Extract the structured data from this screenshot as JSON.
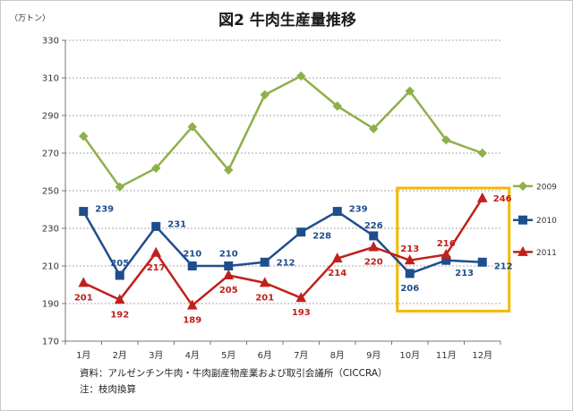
{
  "chart_data": {
    "type": "line",
    "title": "図2  牛肉生産量推移",
    "unit": "（万トン）",
    "categories": [
      "1月",
      "2月",
      "3月",
      "4月",
      "5月",
      "6月",
      "7月",
      "8月",
      "9月",
      "10月",
      "11月",
      "12月"
    ],
    "ylim": [
      170,
      330
    ],
    "yticks": [
      170,
      190,
      210,
      230,
      250,
      270,
      290,
      310,
      330
    ],
    "grid": true,
    "legend_position": "right",
    "series": [
      {
        "name": "2009",
        "color": "#8db04a",
        "marker": "diamond",
        "values": [
          279,
          252,
          262,
          284,
          261,
          301,
          311,
          295,
          283,
          303,
          277,
          270
        ],
        "show_labels": false
      },
      {
        "name": "2010",
        "color": "#1f4e8c",
        "marker": "square",
        "values": [
          239,
          205,
          231,
          210,
          210,
          212,
          228,
          239,
          226,
          206,
          213,
          212
        ],
        "show_labels": true
      },
      {
        "name": "2011",
        "color": "#c0201c",
        "marker": "triangle",
        "values": [
          201,
          192,
          217,
          189,
          205,
          201,
          193,
          214,
          220,
          213,
          216,
          246
        ],
        "show_labels": true
      }
    ],
    "highlight": {
      "from_category": "10月",
      "to_category": "12月",
      "color": "#f5b800"
    }
  },
  "notes": {
    "source": "資料：アルゼンチン牛肉・牛肉副産物産業および取引会議所（CICCRA）",
    "remark": "注：枝肉換算"
  }
}
